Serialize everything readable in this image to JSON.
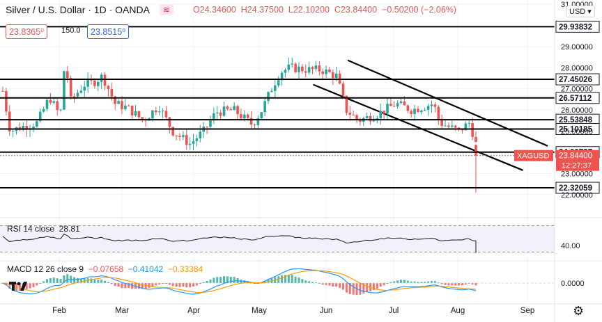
{
  "header": {
    "symbol": "Silver / U.S. Dollar · 1D · OANDA",
    "open": "O24.34600",
    "high": "H24.37500",
    "low": "L22.10200",
    "close": "C23.84400",
    "change": "−0.50200 (−2.06%)",
    "wave_icon": "wave-icon"
  },
  "trade": {
    "sell": "23.8365⁰",
    "lot": "150.0",
    "buy": "23.8515⁰"
  },
  "currency": "USD ▾",
  "chart_data": {
    "type": "candlestick",
    "months": [
      "Feb",
      "Mar",
      "Apr",
      "May",
      "Jun",
      "Jul",
      "Aug",
      "Sep"
    ],
    "y_ticks": [
      "31.00000",
      "29.00000",
      "28.00000",
      "27.00000",
      "26.00000",
      "25.00000",
      "23.00000",
      "22.00000"
    ],
    "ylim": [
      21.5,
      31.2
    ],
    "horizontal_levels": [
      "29.93832",
      "27.45026",
      "26.57112",
      "25.53848",
      "25.10185",
      "24.00737",
      "22.32059"
    ],
    "current_price": {
      "symbol": "XAGUSD",
      "price": "23.84400",
      "countdown": "12:27:37"
    },
    "channel_upper": [
      [
        25.0,
        28.35
      ],
      [
        39.5,
        24.3
      ]
    ],
    "channel_lower": [
      [
        22.5,
        27.2
      ],
      [
        37.7,
        23.15
      ]
    ],
    "rsi": {
      "label": "RSI 14 close",
      "value": "28.81",
      "tick": "40.00",
      "ylim": [
        20,
        80
      ]
    },
    "macd": {
      "label": "MACD 12 26 close 9",
      "hist": "−0.07658",
      "macd": "−0.41042",
      "signal": "−0.33384",
      "tick": "0.0000"
    },
    "colors": {
      "up": "#26a69a",
      "down": "#ef5350",
      "macd_line": "#2196f3",
      "signal_line": "#ff9800",
      "level": "#000000"
    }
  },
  "settings_icon": "gear-icon"
}
